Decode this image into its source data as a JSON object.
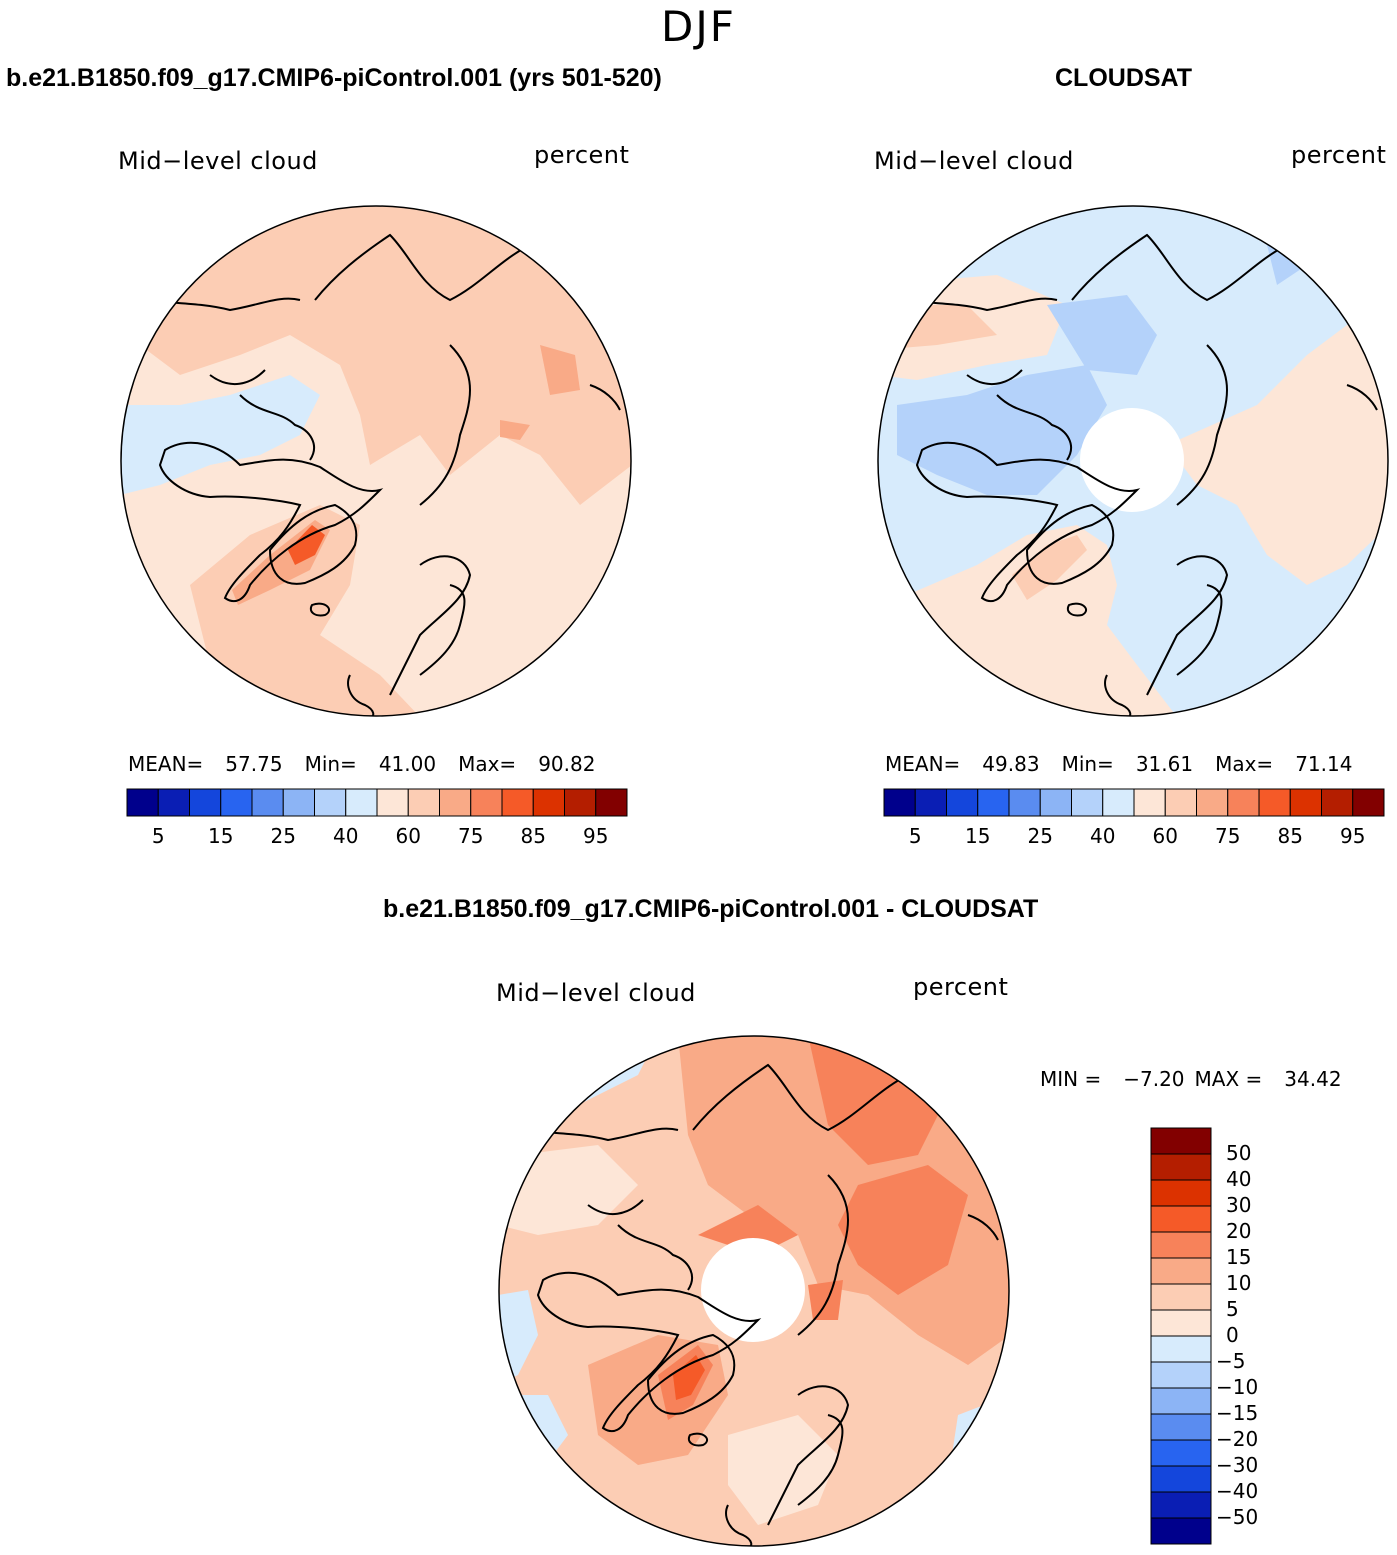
{
  "figure": {
    "season": "DJF"
  },
  "panels": [
    {
      "id": "model",
      "title": "b.e21.B1850.f09_g17.CMIP6-piControl.001 (yrs 501-520)",
      "variable": "Mid−level cloud",
      "units": "percent",
      "stats": {
        "mean_label": "MEAN=",
        "mean": "57.75",
        "min_label": "Min=",
        "min": "41.00",
        "max_label": "Max=",
        "max": "90.82"
      },
      "has_polar_gap": false
    },
    {
      "id": "obs",
      "title": "CLOUDSAT",
      "variable": "Mid−level cloud",
      "units": "percent",
      "stats": {
        "mean_label": "MEAN=",
        "mean": "49.83",
        "min_label": "Min=",
        "min": "31.61",
        "max_label": "Max=",
        "max": "71.14"
      },
      "has_polar_gap": true
    },
    {
      "id": "diff",
      "title": "b.e21.B1850.f09_g17.CMIP6-piControl.001 - CLOUDSAT",
      "variable": "Mid−level cloud",
      "units": "percent",
      "stats": {
        "min_label": "MIN =",
        "min": "−7.20",
        "max_label": "MAX =",
        "max": "34.42"
      },
      "has_polar_gap": true
    }
  ],
  "colorbars": {
    "horizontal": {
      "colors": [
        "#00008c",
        "#0a1eb4",
        "#1446dc",
        "#2864f0",
        "#5a8cf0",
        "#8cb4f5",
        "#b4d2fa",
        "#d7ebfc",
        "#fde6d7",
        "#fccdb4",
        "#f9aa87",
        "#f7825a",
        "#f55a28",
        "#dc3200",
        "#b41e00",
        "#820000"
      ],
      "tick_labels": [
        "5",
        "15",
        "25",
        "40",
        "60",
        "75",
        "85",
        "95"
      ],
      "tick_after_box": [
        1,
        3,
        5,
        7,
        9,
        11,
        13,
        15
      ]
    },
    "vertical": {
      "colors_top_to_bottom": [
        "#820000",
        "#b41e00",
        "#dc3200",
        "#f55a28",
        "#f7825a",
        "#f9aa87",
        "#fccdb4",
        "#fde6d7",
        "#d7ebfc",
        "#b4d2fa",
        "#8cb4f5",
        "#5a8cf0",
        "#2864f0",
        "#1446dc",
        "#0a1eb4",
        "#00008c"
      ],
      "tick_labels": [
        "50",
        "40",
        "30",
        "20",
        "15",
        "10",
        "5",
        "0",
        "−5",
        "−10",
        "−15",
        "−20",
        "−30",
        "−40",
        "−50"
      ]
    }
  },
  "map_fills": {
    "model_base": "#fde6d7",
    "model_mid": "#fccdb4",
    "model_high": "#f9aa87",
    "model_peak": "#f55a28",
    "model_low": "#d7ebfc",
    "obs_base": "#d7ebfc",
    "obs_low": "#b4d2fa",
    "obs_warm": "#fde6d7",
    "obs_warm2": "#fccdb4",
    "diff_base": "#fccdb4",
    "diff_high": "#f9aa87",
    "diff_higher": "#f7825a",
    "diff_peak": "#f55a28",
    "diff_low": "#d7ebfc",
    "diff_neutral": "#fde6d7"
  }
}
